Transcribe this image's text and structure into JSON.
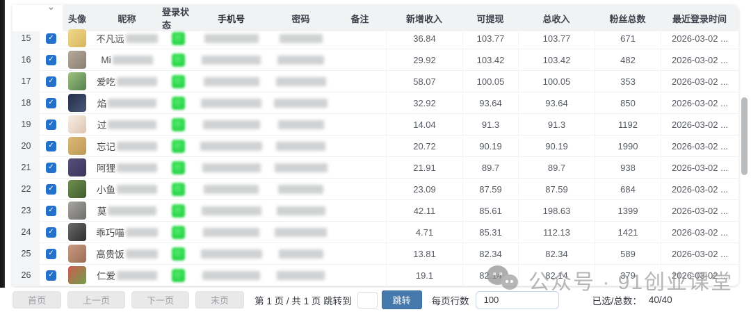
{
  "table": {
    "headers": [
      "头像",
      "昵称",
      "登录状态",
      "手机号",
      "密码",
      "备注",
      "新增收入",
      "可提现",
      "总收入",
      "粉丝总数",
      "最近登录时间"
    ],
    "sorted_header": "手机号",
    "select_all_icon": "chevron-down",
    "status_color": "#22d343",
    "checkbox_color": "#2471cc",
    "rows": [
      {
        "num": "15",
        "checked": true,
        "nickname": "不凡远",
        "avatar": [
          "#f0d98a",
          "#d8b45e"
        ],
        "status": "online",
        "new_income": "36.84",
        "withdrawable": "103.77",
        "total_income": "103.77",
        "fans": "671",
        "last_login": "2026-03-02 ..."
      },
      {
        "num": "16",
        "checked": true,
        "nickname": "Mi",
        "avatar": [
          "#b5a99c",
          "#8a7f72"
        ],
        "status": "online",
        "new_income": "29.92",
        "withdrawable": "103.42",
        "total_income": "103.42",
        "fans": "482",
        "last_login": "2026-03-02 ..."
      },
      {
        "num": "17",
        "checked": true,
        "nickname": "爱吃",
        "avatar": [
          "#9ec27e",
          "#55804f"
        ],
        "status": "online",
        "new_income": "58.07",
        "withdrawable": "100.05",
        "total_income": "100.05",
        "fans": "353",
        "last_login": "2026-03-02 ..."
      },
      {
        "num": "18",
        "checked": true,
        "nickname": "焰",
        "avatar": [
          "#232c4a",
          "#4a5878"
        ],
        "status": "online",
        "new_income": "32.92",
        "withdrawable": "93.64",
        "total_income": "93.64",
        "fans": "850",
        "last_login": "2026-03-02 ..."
      },
      {
        "num": "19",
        "checked": true,
        "nickname": "过",
        "avatar": [
          "#f5efe6",
          "#e0c4b0"
        ],
        "status": "online",
        "new_income": "14.04",
        "withdrawable": "91.3",
        "total_income": "91.3",
        "fans": "1192",
        "last_login": "2026-03-02 ..."
      },
      {
        "num": "20",
        "checked": true,
        "nickname": "忘记",
        "avatar": [
          "#d9b878",
          "#c09a56"
        ],
        "status": "online",
        "new_income": "20.72",
        "withdrawable": "90.19",
        "total_income": "90.19",
        "fans": "1990",
        "last_login": "2026-03-02 ..."
      },
      {
        "num": "21",
        "checked": true,
        "nickname": "阿狸",
        "avatar": [
          "#56507a",
          "#39355c"
        ],
        "status": "online",
        "new_income": "21.91",
        "withdrawable": "89.7",
        "total_income": "89.7",
        "fans": "938",
        "last_login": "2026-03-02 ..."
      },
      {
        "num": "22",
        "checked": true,
        "nickname": "小鱼",
        "avatar": [
          "#6f8f4e",
          "#3f5c2e"
        ],
        "status": "online",
        "new_income": "23.09",
        "withdrawable": "87.59",
        "total_income": "87.59",
        "fans": "684",
        "last_login": "2026-03-02 ..."
      },
      {
        "num": "23",
        "checked": true,
        "nickname": "莫",
        "avatar": [
          "#a8a6a2",
          "#6e6c68"
        ],
        "status": "online",
        "new_income": "42.11",
        "withdrawable": "85.61",
        "total_income": "198.63",
        "fans": "1399",
        "last_login": "2026-03-02 ..."
      },
      {
        "num": "24",
        "checked": true,
        "nickname": "乖巧喵",
        "avatar": [
          "#6a6a6a",
          "#2e2e2e"
        ],
        "status": "online",
        "new_income": "4.71",
        "withdrawable": "85.31",
        "total_income": "112.13",
        "fans": "1421",
        "last_login": "2026-03-02 ..."
      },
      {
        "num": "25",
        "checked": true,
        "nickname": "高贵饭",
        "avatar": [
          "#c99a80",
          "#9c6e58"
        ],
        "status": "online",
        "new_income": "13.81",
        "withdrawable": "82.34",
        "total_income": "82.34",
        "fans": "589",
        "last_login": "2026-03-02 ..."
      },
      {
        "num": "26",
        "checked": true,
        "nickname": "仁爱",
        "avatar": [
          "#d05a50",
          "#6fa049"
        ],
        "status": "online",
        "new_income": "19.1",
        "withdrawable": "82.14",
        "total_income": "82.14",
        "fans": "379",
        "last_login": "2026-03-02 ..."
      }
    ]
  },
  "pagination": {
    "first": "首页",
    "prev": "上一页",
    "next": "下一页",
    "last": "末页",
    "page_info": "第 1 页 / 共 1 页 跳转到",
    "jump_input_value": "",
    "jump_button": "跳转",
    "rows_per_page_label": "每页行数",
    "rows_per_page_value": "100",
    "selected_label": "已选/总数：",
    "selected_value": "40/40"
  },
  "watermark": {
    "icon": "wechat-logo",
    "text": "公众号 · 91创业课堂"
  }
}
